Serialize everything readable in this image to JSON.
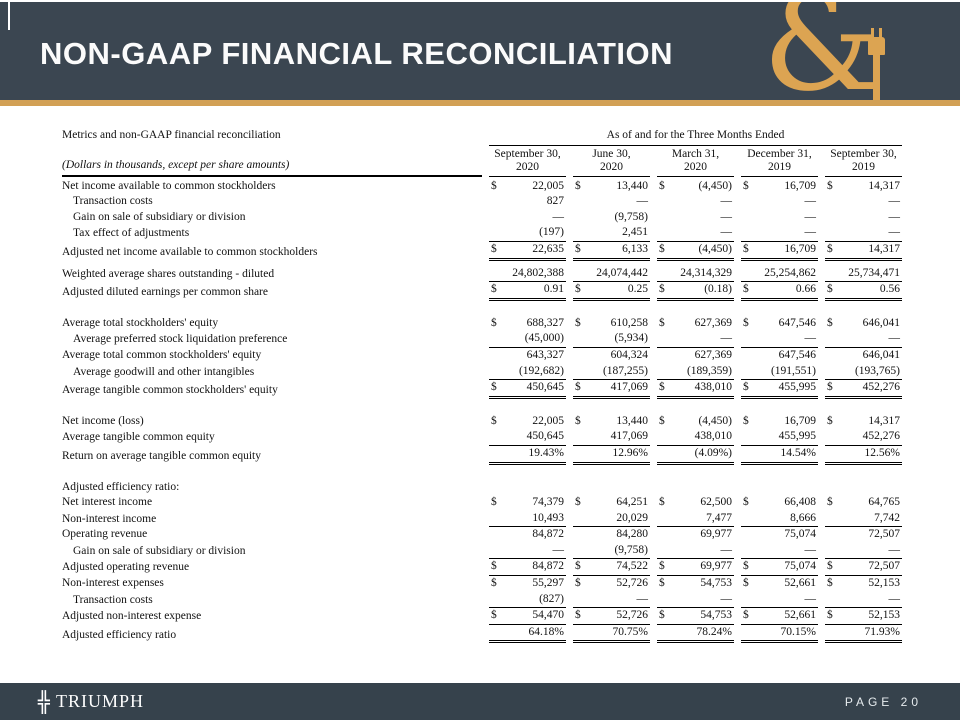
{
  "slide": {
    "title": "NON-GAAP FINANCIAL RECONCILIATION",
    "page_label": "PAGE 20",
    "brand_name": "TRIUMPH",
    "icons": {
      "brand_cross": "╬",
      "amp_logo": "&"
    },
    "colors": {
      "header_bg": "#3B4651",
      "accent_gold": "#D2A055",
      "footer_bg": "#36424C"
    }
  },
  "table": {
    "left_header": "Metrics and non-GAAP financial reconciliation",
    "left_subheader": "(Dollars in thousands, except per share amounts)",
    "span_header": "As of and for the Three Months Ended",
    "columns": [
      [
        "September 30,",
        "2020"
      ],
      [
        "June 30,",
        "2020"
      ],
      [
        "March 31,",
        "2020"
      ],
      [
        "December 31,",
        "2019"
      ],
      [
        "September 30,",
        "2019"
      ]
    ],
    "rows": [
      {
        "label": "Net income available to common stockholders",
        "indent": false,
        "dollar": true,
        "border": "none",
        "values": [
          "22,005",
          "13,440",
          "(4,450)",
          "16,709",
          "14,317"
        ]
      },
      {
        "label": "Transaction costs",
        "indent": true,
        "dollar": false,
        "border": "none",
        "values": [
          "827",
          "—",
          "—",
          "—",
          "—"
        ]
      },
      {
        "label": "Gain on sale of subsidiary or division",
        "indent": true,
        "dollar": false,
        "border": "none",
        "values": [
          "—",
          "(9,758)",
          "—",
          "—",
          "—"
        ]
      },
      {
        "label": "Tax effect of adjustments",
        "indent": true,
        "dollar": false,
        "border": "single",
        "values": [
          "(197)",
          "2,451",
          "—",
          "—",
          "—"
        ]
      },
      {
        "label": "Adjusted net income available to common stockholders",
        "indent": false,
        "dollar": true,
        "border": "double",
        "gap_after": true,
        "values": [
          "22,635",
          "6,133",
          "(4,450)",
          "16,709",
          "14,317"
        ]
      },
      {
        "label": "Weighted average shares outstanding - diluted",
        "indent": false,
        "dollar": false,
        "border": "single",
        "values": [
          "24,802,388",
          "24,074,442",
          "24,314,329",
          "25,254,862",
          "25,734,471"
        ]
      },
      {
        "label": "Adjusted diluted earnings per common share",
        "indent": false,
        "dollar": true,
        "border": "double",
        "values": [
          "0.91",
          "0.25",
          "(0.18)",
          "0.66",
          "0.56"
        ]
      },
      {
        "type": "spacer"
      },
      {
        "label": "Average total stockholders' equity",
        "indent": false,
        "dollar": true,
        "border": "none",
        "values": [
          "688,327",
          "610,258",
          "627,369",
          "647,546",
          "646,041"
        ]
      },
      {
        "label": "Average preferred stock liquidation preference",
        "indent": true,
        "dollar": false,
        "border": "single",
        "values": [
          "(45,000)",
          "(5,934)",
          "—",
          "—",
          "—"
        ]
      },
      {
        "label": "Average total common stockholders' equity",
        "indent": false,
        "dollar": false,
        "border": "none",
        "values": [
          "643,327",
          "604,324",
          "627,369",
          "647,546",
          "646,041"
        ]
      },
      {
        "label": "Average goodwill and other intangibles",
        "indent": true,
        "dollar": false,
        "border": "single",
        "values": [
          "(192,682)",
          "(187,255)",
          "(189,359)",
          "(191,551)",
          "(193,765)"
        ]
      },
      {
        "label": "Average tangible common stockholders' equity",
        "indent": false,
        "dollar": true,
        "border": "double",
        "values": [
          "450,645",
          "417,069",
          "438,010",
          "455,995",
          "452,276"
        ]
      },
      {
        "type": "spacer"
      },
      {
        "label": "Net income (loss)",
        "indent": false,
        "dollar": true,
        "border": "none",
        "values": [
          "22,005",
          "13,440",
          "(4,450)",
          "16,709",
          "14,317"
        ]
      },
      {
        "label": "Average tangible common equity",
        "indent": false,
        "dollar": false,
        "border": "single",
        "values": [
          "450,645",
          "417,069",
          "438,010",
          "455,995",
          "452,276"
        ]
      },
      {
        "label": "Return on average tangible common equity",
        "indent": false,
        "dollar": false,
        "border": "double",
        "values": [
          "19.43%",
          "12.96%",
          "(4.09%)",
          "14.54%",
          "12.56%"
        ]
      },
      {
        "type": "spacer"
      },
      {
        "label": "Adjusted efficiency ratio:",
        "indent": false,
        "type": "section"
      },
      {
        "label": "Net interest income",
        "indent": false,
        "dollar": true,
        "border": "none",
        "values": [
          "74,379",
          "64,251",
          "62,500",
          "66,408",
          "64,765"
        ]
      },
      {
        "label": "Non-interest income",
        "indent": false,
        "dollar": false,
        "border": "single",
        "values": [
          "10,493",
          "20,029",
          "7,477",
          "8,666",
          "7,742"
        ]
      },
      {
        "label": "Operating revenue",
        "indent": false,
        "dollar": false,
        "border": "none",
        "values": [
          "84,872",
          "84,280",
          "69,977",
          "75,074",
          "72,507"
        ]
      },
      {
        "label": "Gain on sale of subsidiary or division",
        "indent": true,
        "dollar": false,
        "border": "single",
        "values": [
          "—",
          "(9,758)",
          "—",
          "—",
          "—"
        ]
      },
      {
        "label": "Adjusted operating revenue",
        "indent": false,
        "dollar": true,
        "border": "single",
        "values": [
          "84,872",
          "74,522",
          "69,977",
          "75,074",
          "72,507"
        ]
      },
      {
        "label": "Non-interest expenses",
        "indent": false,
        "dollar": true,
        "border": "none",
        "values": [
          "55,297",
          "52,726",
          "54,753",
          "52,661",
          "52,153"
        ]
      },
      {
        "label": "Transaction costs",
        "indent": true,
        "dollar": false,
        "border": "single",
        "values": [
          "(827)",
          "—",
          "—",
          "—",
          "—"
        ]
      },
      {
        "label": "Adjusted non-interest expense",
        "indent": false,
        "dollar": true,
        "border": "single",
        "values": [
          "54,470",
          "52,726",
          "54,753",
          "52,661",
          "52,153"
        ]
      },
      {
        "label": "Adjusted efficiency ratio",
        "indent": false,
        "dollar": false,
        "border": "double",
        "values": [
          "64.18%",
          "70.75%",
          "78.24%",
          "70.15%",
          "71.93%"
        ]
      }
    ]
  }
}
